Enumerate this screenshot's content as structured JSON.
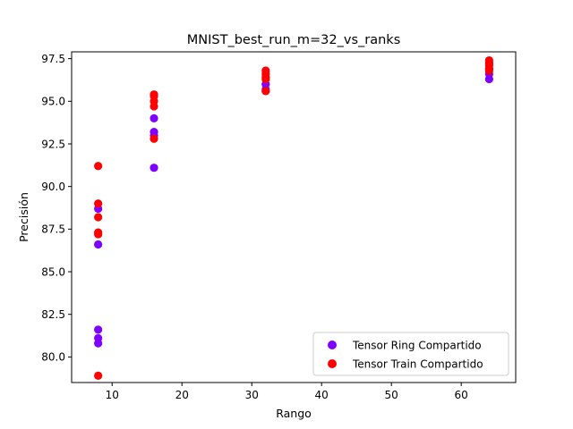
{
  "chart_data": {
    "type": "scatter",
    "title": "MNIST_best_run_m=32_vs_ranks",
    "xlabel": "Rango",
    "ylabel": "Precisión",
    "xlim": [
      4.2,
      67.8
    ],
    "ylim": [
      78.5,
      97.9
    ],
    "xticks": [
      10,
      20,
      30,
      40,
      50,
      60
    ],
    "xtick_labels": [
      "10",
      "20",
      "30",
      "40",
      "50",
      "60"
    ],
    "yticks": [
      80.0,
      82.5,
      85.0,
      87.5,
      90.0,
      92.5,
      95.0,
      97.5
    ],
    "ytick_labels": [
      "80.0",
      "82.5",
      "85.0",
      "87.5",
      "90.0",
      "92.5",
      "95.0",
      "97.5"
    ],
    "grid": false,
    "legend_position": "lower right",
    "series": [
      {
        "name": "Tensor Ring Compartido",
        "color": "#8000ff",
        "points": [
          [
            8,
            88.7
          ],
          [
            8,
            86.6
          ],
          [
            8,
            81.6
          ],
          [
            8,
            81.1
          ],
          [
            8,
            80.8
          ],
          [
            16,
            94.0
          ],
          [
            16,
            93.2
          ],
          [
            16,
            93.0
          ],
          [
            16,
            91.1
          ],
          [
            32,
            96.0
          ],
          [
            32,
            95.7
          ],
          [
            32,
            95.6
          ],
          [
            64,
            96.9
          ],
          [
            64,
            96.6
          ],
          [
            64,
            96.3
          ]
        ]
      },
      {
        "name": "Tensor Train Compartido",
        "color": "#ff0000",
        "points": [
          [
            8,
            91.2
          ],
          [
            8,
            89.0
          ],
          [
            8,
            88.2
          ],
          [
            8,
            87.3
          ],
          [
            8,
            87.2
          ],
          [
            8,
            78.9
          ],
          [
            16,
            95.4
          ],
          [
            16,
            95.3
          ],
          [
            16,
            95.0
          ],
          [
            16,
            94.7
          ],
          [
            16,
            92.8
          ],
          [
            32,
            96.8
          ],
          [
            32,
            96.6
          ],
          [
            32,
            96.4
          ],
          [
            32,
            96.3
          ],
          [
            32,
            95.6
          ],
          [
            64,
            97.4
          ],
          [
            64,
            97.3
          ],
          [
            64,
            97.2
          ],
          [
            64,
            97.1
          ],
          [
            64,
            96.9
          ],
          [
            64,
            96.8
          ]
        ]
      }
    ]
  }
}
